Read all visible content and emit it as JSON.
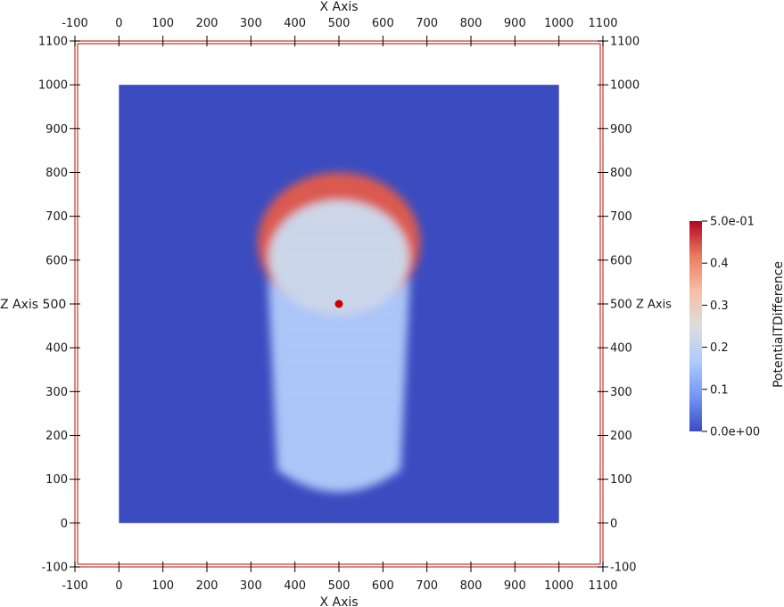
{
  "chart_data": {
    "type": "heatmap",
    "title": "",
    "xlabel": "X Axis",
    "zlabel": "Z Axis",
    "x_ticks": [
      -100,
      0,
      100,
      200,
      300,
      400,
      500,
      600,
      700,
      800,
      900,
      1000,
      1100
    ],
    "z_ticks": [
      -100,
      0,
      100,
      200,
      300,
      400,
      500,
      600,
      700,
      800,
      900,
      1000,
      1100
    ],
    "xlim": [
      -100,
      1100
    ],
    "zlim": [
      -100,
      1100
    ],
    "domain": {
      "x": [
        0,
        1000
      ],
      "z": [
        0,
        1000
      ]
    },
    "field": {
      "name": "PotentialTDifference",
      "background_value": 0.0,
      "plume": {
        "cap_center": [
          500,
          640
        ],
        "cap_radius": [
          185,
          160
        ],
        "cap_value": 0.44,
        "interior_value": 0.22,
        "tail_top": 640,
        "tail_bottom": 40,
        "tail_half_width": 165,
        "tail_value": 0.17
      }
    },
    "marker": {
      "x": 500,
      "z": 500,
      "color": "#cc0000"
    },
    "colorbar": {
      "title": "PotentialTDifference",
      "range": [
        0.0,
        0.5
      ],
      "tick_values": [
        0.5,
        0.4,
        0.3,
        0.2,
        0.1,
        0.0
      ],
      "tick_labels": [
        "5.0e-01",
        "0.4",
        "0.3",
        "0.2",
        "0.1",
        "0.0e+00"
      ],
      "colormap": "Cool to Warm",
      "color_stops": [
        "#3b4cc0",
        "#7396f5",
        "#b0cbfc",
        "#dddddd",
        "#f6bfa6",
        "#ea7b60",
        "#b40426"
      ]
    },
    "colors": {
      "background": "#ffffff",
      "bounds_box": "#c0392b",
      "axis_text": "#1a1a1a"
    }
  }
}
